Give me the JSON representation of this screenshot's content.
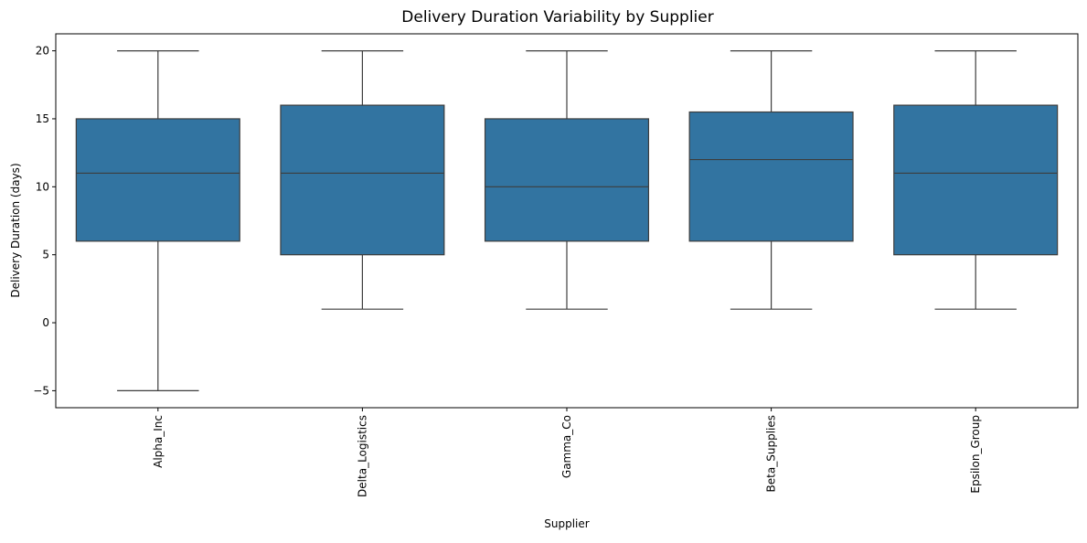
{
  "chart_data": {
    "type": "boxplot",
    "title": "Delivery Duration Variability by Supplier",
    "xlabel": "Supplier",
    "ylabel": "Delivery Duration (days)",
    "ylim": [
      -6.25,
      21.25
    ],
    "yticks": [
      -5,
      0,
      5,
      10,
      15,
      20
    ],
    "grid": false,
    "box_color": "#3274a1",
    "line_color": "#3d3d3d",
    "categories": [
      "Alpha_Inc",
      "Delta_Logistics",
      "Gamma_Co",
      "Beta_Supplies",
      "Epsilon_Group"
    ],
    "boxes": [
      {
        "category": "Alpha_Inc",
        "whisker_low": -5,
        "q1": 6,
        "median": 11,
        "q3": 15,
        "whisker_high": 20
      },
      {
        "category": "Delta_Logistics",
        "whisker_low": 1,
        "q1": 5,
        "median": 11,
        "q3": 16,
        "whisker_high": 20
      },
      {
        "category": "Gamma_Co",
        "whisker_low": 1,
        "q1": 6,
        "median": 10,
        "q3": 15,
        "whisker_high": 20
      },
      {
        "category": "Beta_Supplies",
        "whisker_low": 1,
        "q1": 6,
        "median": 12,
        "q3": 15.5,
        "whisker_high": 20
      },
      {
        "category": "Epsilon_Group",
        "whisker_low": 1,
        "q1": 5,
        "median": 11,
        "q3": 16,
        "whisker_high": 20
      }
    ]
  }
}
